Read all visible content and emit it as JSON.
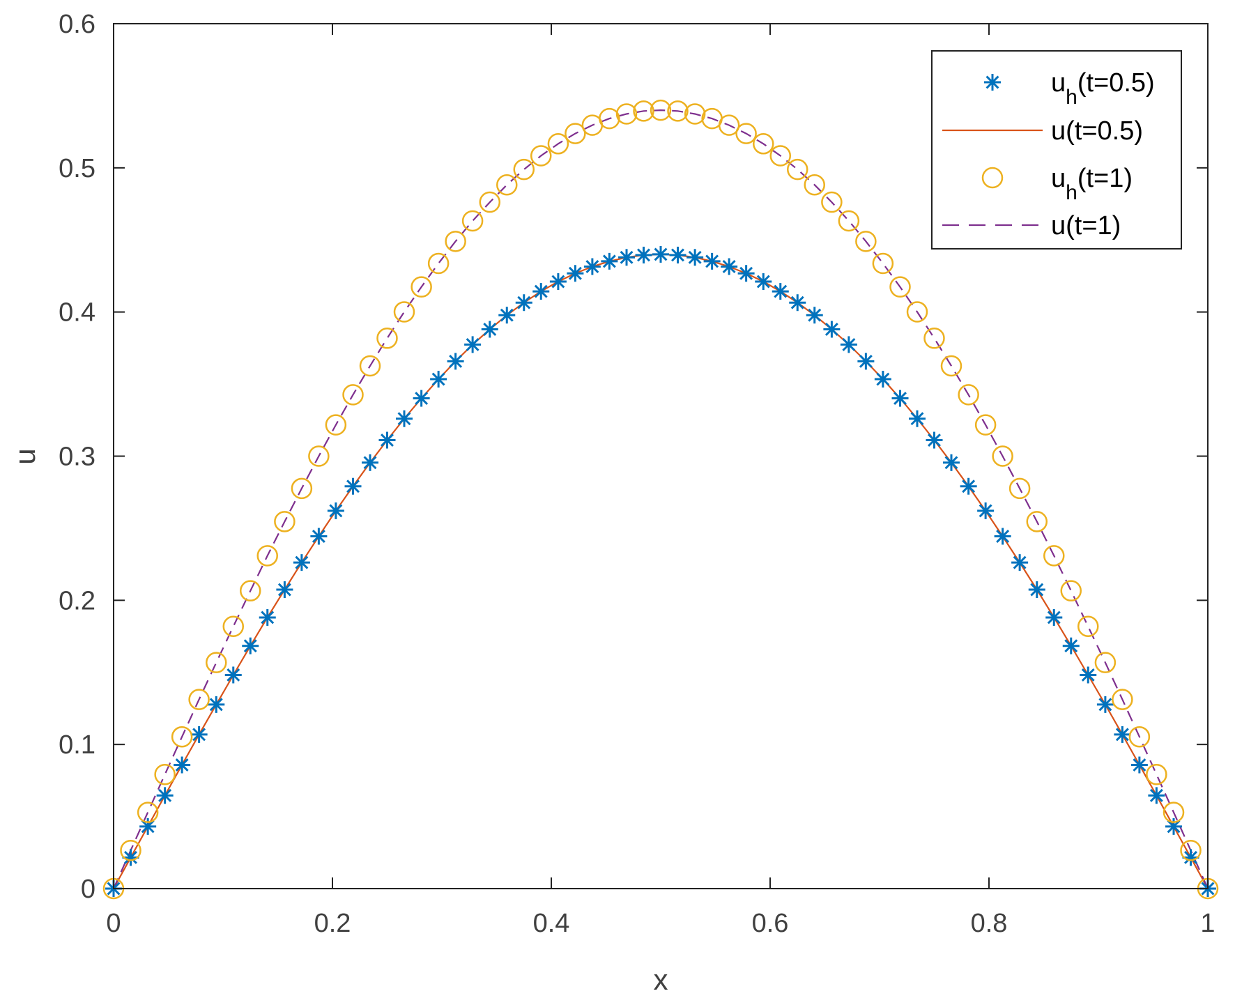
{
  "chart_data": {
    "type": "line",
    "xlabel": "x",
    "ylabel": "u",
    "xlim": [
      0,
      1
    ],
    "ylim": [
      0,
      0.6
    ],
    "xticks": [
      "0",
      "0.2",
      "0.4",
      "0.6",
      "0.8",
      "1"
    ],
    "yticks": [
      "0",
      "0.1",
      "0.2",
      "0.3",
      "0.4",
      "0.5",
      "0.6"
    ],
    "grid": false,
    "legend_position": "top-right",
    "x": [
      0,
      0.0156,
      0.0313,
      0.0469,
      0.0625,
      0.0781,
      0.0938,
      0.1094,
      0.125,
      0.1406,
      0.1563,
      0.1719,
      0.1875,
      0.2031,
      0.2188,
      0.2344,
      0.25,
      0.2656,
      0.2813,
      0.2969,
      0.3125,
      0.3281,
      0.3438,
      0.3594,
      0.375,
      0.3906,
      0.4063,
      0.4219,
      0.4375,
      0.4531,
      0.4688,
      0.4844,
      0.5,
      0.5156,
      0.5313,
      0.5469,
      0.5625,
      0.5781,
      0.5938,
      0.6094,
      0.625,
      0.6406,
      0.6563,
      0.6719,
      0.6875,
      0.7031,
      0.7188,
      0.7344,
      0.75,
      0.7656,
      0.7813,
      0.7969,
      0.8125,
      0.8281,
      0.8438,
      0.8594,
      0.875,
      0.8906,
      0.9063,
      0.9219,
      0.9375,
      0.9531,
      0.9688,
      0.9844,
      1
    ],
    "series": [
      {
        "name": "u_h(t=0.5)",
        "label": {
          "base": "u",
          "sub": "h",
          "rest": "(t=0.5)"
        },
        "style": "marker",
        "marker": "asterisk",
        "color": "#0072BD",
        "values": [
          0,
          0.0216,
          0.0431,
          0.0646,
          0.0858,
          0.1069,
          0.1277,
          0.1482,
          0.1684,
          0.1881,
          0.2074,
          0.2262,
          0.2444,
          0.2621,
          0.2791,
          0.2955,
          0.3111,
          0.326,
          0.3401,
          0.3534,
          0.3658,
          0.3774,
          0.388,
          0.3978,
          0.4065,
          0.4143,
          0.4211,
          0.4268,
          0.4315,
          0.4352,
          0.4379,
          0.4395,
          0.44,
          0.4395,
          0.4379,
          0.4352,
          0.4315,
          0.4268,
          0.4211,
          0.4143,
          0.4065,
          0.3978,
          0.388,
          0.3774,
          0.3658,
          0.3534,
          0.3401,
          0.326,
          0.3111,
          0.2955,
          0.2791,
          0.2621,
          0.2444,
          0.2262,
          0.2074,
          0.1881,
          0.1684,
          0.1482,
          0.1277,
          0.1069,
          0.0858,
          0.0646,
          0.0431,
          0.0216,
          0
        ]
      },
      {
        "name": "u(t=0.5)",
        "label": {
          "base": "u",
          "sub": "",
          "rest": "(t=0.5)"
        },
        "style": "solid",
        "color": "#D95319",
        "values": [
          0,
          0.0216,
          0.0431,
          0.0646,
          0.0858,
          0.1069,
          0.1277,
          0.1482,
          0.1684,
          0.1881,
          0.2074,
          0.2262,
          0.2444,
          0.2621,
          0.2791,
          0.2955,
          0.3111,
          0.326,
          0.3401,
          0.3534,
          0.3658,
          0.3774,
          0.388,
          0.3978,
          0.4065,
          0.4143,
          0.4211,
          0.4268,
          0.4315,
          0.4352,
          0.4379,
          0.4395,
          0.44,
          0.4395,
          0.4379,
          0.4352,
          0.4315,
          0.4268,
          0.4211,
          0.4143,
          0.4065,
          0.3978,
          0.388,
          0.3774,
          0.3658,
          0.3534,
          0.3401,
          0.326,
          0.3111,
          0.2955,
          0.2791,
          0.2621,
          0.2444,
          0.2262,
          0.2074,
          0.1881,
          0.1684,
          0.1482,
          0.1277,
          0.1069,
          0.0858,
          0.0646,
          0.0431,
          0.0216,
          0
        ]
      },
      {
        "name": "u_h(t=1)",
        "label": {
          "base": "u",
          "sub": "h",
          "rest": "(t=1)"
        },
        "style": "marker",
        "marker": "circle",
        "color": "#EDB120",
        "values": [
          0,
          0.0265,
          0.0529,
          0.0792,
          0.1053,
          0.1312,
          0.1568,
          0.1819,
          0.2066,
          0.2309,
          0.2546,
          0.2776,
          0.3,
          0.3217,
          0.3426,
          0.3626,
          0.3818,
          0.4001,
          0.4174,
          0.4337,
          0.449,
          0.4632,
          0.4762,
          0.4882,
          0.4989,
          0.5084,
          0.5167,
          0.5238,
          0.5296,
          0.5342,
          0.5374,
          0.5394,
          0.54,
          0.5394,
          0.5374,
          0.5342,
          0.5296,
          0.5238,
          0.5167,
          0.5084,
          0.4989,
          0.4882,
          0.4762,
          0.4632,
          0.449,
          0.4337,
          0.4174,
          0.4001,
          0.3818,
          0.3626,
          0.3426,
          0.3217,
          0.3,
          0.2776,
          0.2546,
          0.2309,
          0.2066,
          0.1819,
          0.1568,
          0.1312,
          0.1053,
          0.0792,
          0.0529,
          0.0265,
          0
        ]
      },
      {
        "name": "u(t=1)",
        "label": {
          "base": "u",
          "sub": "",
          "rest": "(t=1)"
        },
        "style": "dashed",
        "color": "#7E2F8E",
        "values": [
          0,
          0.0265,
          0.0529,
          0.0792,
          0.1053,
          0.1312,
          0.1568,
          0.1819,
          0.2066,
          0.2309,
          0.2546,
          0.2776,
          0.3,
          0.3217,
          0.3426,
          0.3626,
          0.3818,
          0.4001,
          0.4174,
          0.4337,
          0.449,
          0.4632,
          0.4762,
          0.4882,
          0.4989,
          0.5084,
          0.5167,
          0.5238,
          0.5296,
          0.5342,
          0.5374,
          0.5394,
          0.54,
          0.5394,
          0.5374,
          0.5342,
          0.5296,
          0.5238,
          0.5167,
          0.5084,
          0.4989,
          0.4882,
          0.4762,
          0.4632,
          0.449,
          0.4337,
          0.4174,
          0.4001,
          0.3818,
          0.3626,
          0.3426,
          0.3217,
          0.3,
          0.2776,
          0.2546,
          0.2309,
          0.2066,
          0.1819,
          0.1568,
          0.1312,
          0.1053,
          0.0792,
          0.0529,
          0.0265,
          0
        ]
      }
    ]
  }
}
